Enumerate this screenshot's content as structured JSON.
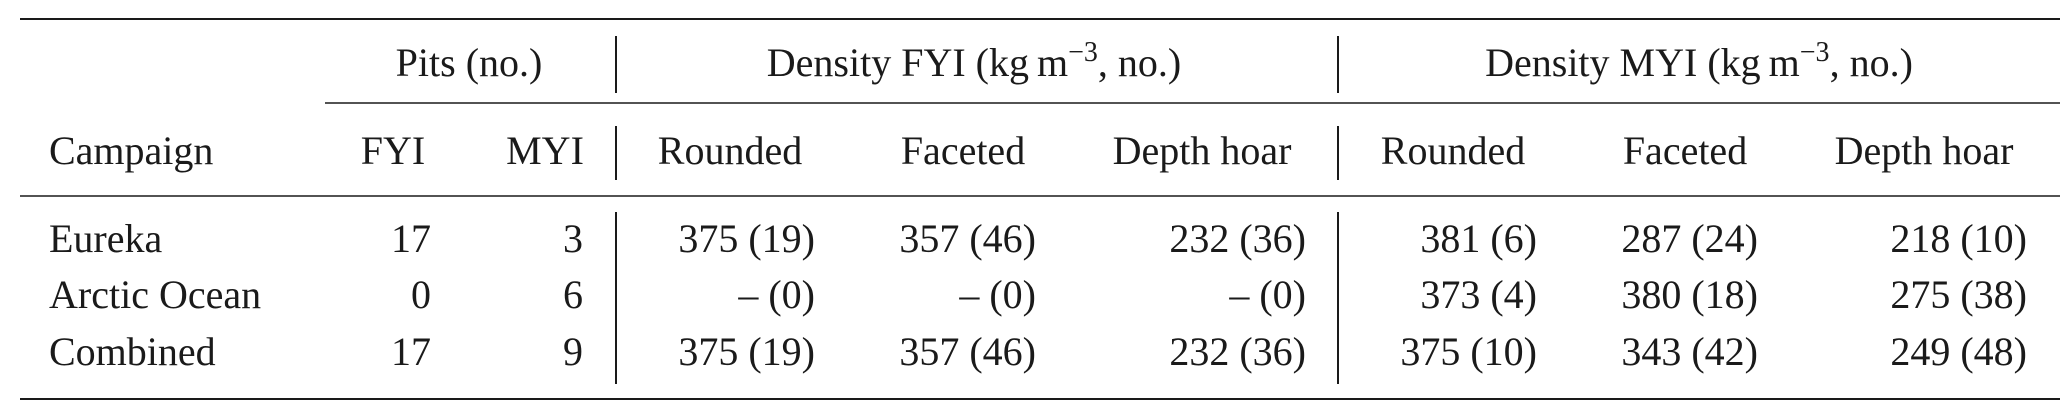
{
  "table": {
    "groups": [
      {
        "label": "Pits (no.)"
      },
      {
        "label": "Density FYI (kg m",
        "sup": "−3",
        "tail": ", no.)"
      },
      {
        "label": "Density MYI (kg m",
        "sup": "−3",
        "tail": ", no.)"
      }
    ],
    "columns": [
      "Campaign",
      "FYI",
      "MYI",
      "Rounded",
      "Faceted",
      "Depth hoar",
      "Rounded",
      "Faceted",
      "Depth hoar"
    ],
    "rows": [
      [
        "Eureka",
        17,
        3,
        "375 (19)",
        "357 (46)",
        "232 (36)",
        "381 (6)",
        "287 (24)",
        "218 (10)"
      ],
      [
        "Arctic Ocean",
        0,
        6,
        "– (0)",
        "– (0)",
        "– (0)",
        "373 (4)",
        "380 (18)",
        "275 (38)"
      ],
      [
        "Combined",
        17,
        9,
        "375 (19)",
        "357 (46)",
        "232 (36)",
        "375 (10)",
        "343 (42)",
        "249 (48)"
      ]
    ]
  }
}
